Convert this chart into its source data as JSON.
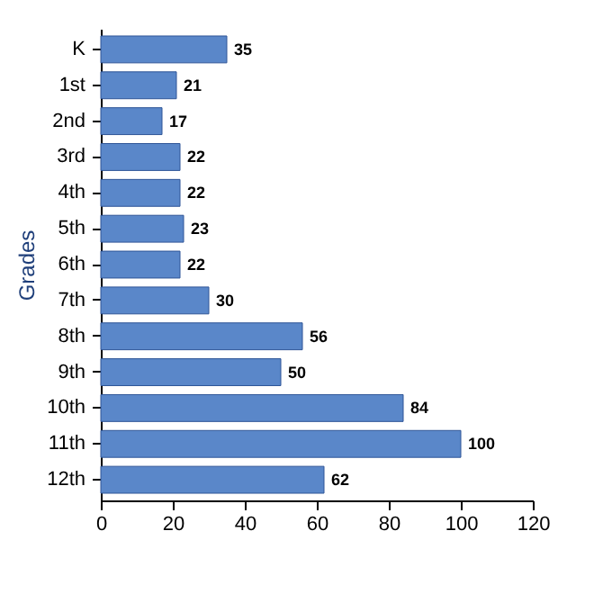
{
  "chart_data": {
    "type": "bar",
    "orientation": "horizontal",
    "ylabel": "Grades",
    "categories": [
      "K",
      "1st",
      "2nd",
      "3rd",
      "4th",
      "5th",
      "6th",
      "7th",
      "8th",
      "9th",
      "10th",
      "11th",
      "12th"
    ],
    "values": [
      35,
      21,
      17,
      22,
      22,
      23,
      22,
      30,
      56,
      50,
      84,
      100,
      62
    ],
    "color": "#5a87c9",
    "xlim": [
      0,
      120
    ],
    "xticks": [
      0,
      20,
      40,
      60,
      80,
      100,
      120
    ],
    "data_labels": true,
    "grid": false
  }
}
